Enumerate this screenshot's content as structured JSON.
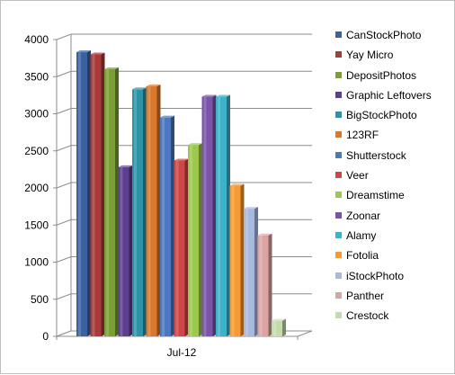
{
  "chart_data": {
    "type": "bar",
    "style": "3d-clustered-column",
    "categories": [
      "Jul-12"
    ],
    "ylim": [
      0,
      4000
    ],
    "yticks": [
      0,
      500,
      1000,
      1500,
      2000,
      2500,
      3000,
      3500,
      4000
    ],
    "grid": "horizontal-major",
    "legend_position": "right",
    "series": [
      {
        "name": "CanStockPhoto",
        "values": [
          3830
        ],
        "color": "#3a62a0"
      },
      {
        "name": "Yay Micro",
        "values": [
          3800
        ],
        "color": "#a83a3a"
      },
      {
        "name": "DepositPhotos",
        "values": [
          3600
        ],
        "color": "#7aa033"
      },
      {
        "name": "Graphic Leftovers",
        "values": [
          2280
        ],
        "color": "#5c3f8e"
      },
      {
        "name": "BigStockPhoto",
        "values": [
          3330
        ],
        "color": "#2f93a8"
      },
      {
        "name": "123RF",
        "values": [
          3370
        ],
        "color": "#d9782b"
      },
      {
        "name": "Shutterstock",
        "values": [
          2950
        ],
        "color": "#4a78c2"
      },
      {
        "name": "Veer",
        "values": [
          2370
        ],
        "color": "#cf4646"
      },
      {
        "name": "Dreamstime",
        "values": [
          2580
        ],
        "color": "#9cc84e"
      },
      {
        "name": "Zoonar",
        "values": [
          3230
        ],
        "color": "#7b54a8"
      },
      {
        "name": "Alamy",
        "values": [
          3230
        ],
        "color": "#3cb3cc"
      },
      {
        "name": "Fotolia",
        "values": [
          2030
        ],
        "color": "#f59a35"
      },
      {
        "name": "iStockPhoto",
        "values": [
          1720
        ],
        "color": "#a8b9de"
      },
      {
        "name": "Panther",
        "values": [
          1360
        ],
        "color": "#dca3a3"
      },
      {
        "name": "Crestock",
        "values": [
          210
        ],
        "color": "#c4dcaa"
      }
    ]
  }
}
